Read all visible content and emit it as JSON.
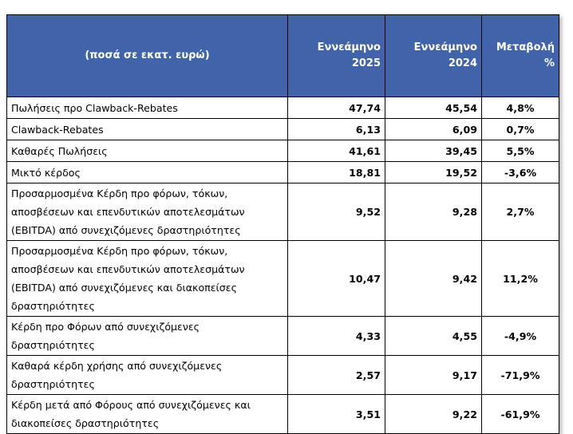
{
  "header": {
    "cells": [
      "(ποσά σε εκατ. ευρώ)",
      "Εννεάμηνο\n2025",
      "Εννεάμηνο\n2024",
      "Μεταβολή\n%"
    ]
  },
  "table": {
    "rows": [
      [
        "Πωλήσεις προ Clawback-Rebates",
        "47,74",
        "45,54",
        "4,8%"
      ],
      [
        "Clawback-Rebates",
        "6,13",
        "6,09",
        "0,7%"
      ],
      [
        "Καθαρές Πωλήσεις",
        "41,61",
        "39,45",
        "5,5%"
      ],
      [
        "Μικτό κέρδος",
        "18,81",
        "19,52",
        "-3,6%"
      ],
      [
        "Προσαρμοσμένα Κέρδη προ φόρων, τόκων,\nαποσβέσεων και επενδυτικών αποτελεσμάτων\n(EBITDA) από συνεχιζόμενες δραστηριότητες",
        "9,52",
        "9,28",
        "2,7%"
      ],
      [
        "Προσαρμοσμένα Κέρδη προ φόρων, τόκων,\nαποσβέσεων και επενδυτικών αποτελεσμάτων\n(EBITDA) από συνεχιζόμενες και διακοπείσες\nδραστηριότητες",
        "10,47",
        "9,42",
        "11,2%"
      ],
      [
        "Κέρδη προ Φόρων από συνεχιζόμενες\nδραστηριότητες",
        "4,33",
        "4,55",
        "-4,9%"
      ],
      [
        "Καθαρά κέρδη χρήσης από συνεχιζόμενες\nδραστηριότητες",
        "2,57",
        "9,17",
        "-71,9%"
      ],
      [
        "Κέρδη μετά από Φόρους από συνεχιζόμενες και\nδιακοπείσες δραστηριότητες",
        "3,51",
        "9,22",
        "-61,9%"
      ]
    ]
  }
}
